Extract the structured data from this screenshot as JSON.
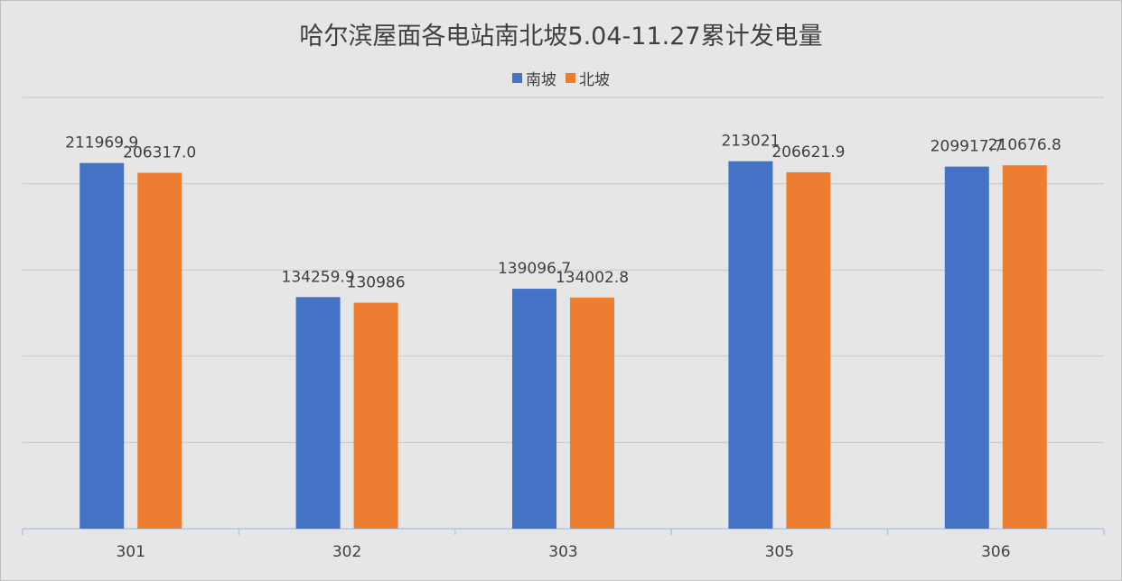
{
  "chart_data": {
    "type": "bar",
    "title": "哈尔滨屋面各电站南北坡5.04-11.27累计发电量",
    "xlabel": "",
    "ylabel": "",
    "categories": [
      "301",
      "302",
      "303",
      "305",
      "306"
    ],
    "series": [
      {
        "name": "南坡",
        "color": "#4472c4",
        "values": [
          211969.9,
          134259.9,
          139096.7,
          213021,
          209917.7
        ],
        "labels": [
          "211969.9",
          "134259.9",
          "139096.7",
          "213021",
          "209917.7"
        ]
      },
      {
        "name": "北坡",
        "color": "#ed7d31",
        "values": [
          206317.0,
          130986,
          134002.8,
          206621.9,
          210676.8
        ],
        "labels": [
          "206317.0",
          "130986",
          "134002.8",
          "206621.9",
          "210676.8"
        ]
      }
    ],
    "ylim": [
      0,
      250000
    ],
    "grid": true,
    "legend_position": "top-center"
  }
}
